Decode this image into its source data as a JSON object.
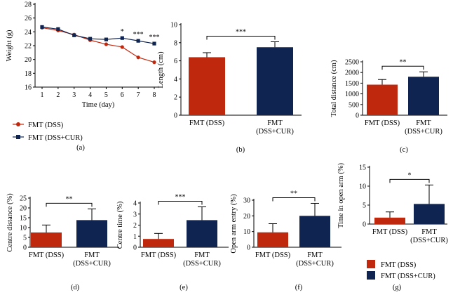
{
  "colors": {
    "dss": "#c0280e",
    "cur": "#0f2451"
  },
  "legend": {
    "line_dss": "FMT (DSS)",
    "line_cur": "FMT (DSS+CUR)",
    "bar_dss": "FMT (DSS)",
    "bar_cur": "FMT (DSS+CUR)"
  },
  "chart_data": [
    {
      "id": "a",
      "type": "line",
      "panel_label": "(a)",
      "xlabel": "Time (day)",
      "ylabel": "Weight (g)",
      "x": [
        1,
        2,
        3,
        4,
        5,
        6,
        7,
        8
      ],
      "xticks": [
        "1",
        "2",
        "3",
        "4",
        "5",
        "6",
        "7",
        "8"
      ],
      "ylim": [
        16,
        28
      ],
      "yticks": [
        "16",
        "18",
        "20",
        "22",
        "24",
        "26",
        "28"
      ],
      "series": [
        {
          "name": "FMT (DSS)",
          "values": [
            24.6,
            24.2,
            23.6,
            22.8,
            22.2,
            21.8,
            20.3,
            19.6
          ]
        },
        {
          "name": "FMT (DSS+CUR)",
          "values": [
            24.7,
            24.4,
            23.5,
            23.0,
            22.9,
            23.1,
            22.7,
            22.3
          ]
        }
      ],
      "significance": [
        {
          "x": 6,
          "label": "*"
        },
        {
          "x": 7,
          "label": "***"
        },
        {
          "x": 8,
          "label": "***"
        }
      ]
    },
    {
      "id": "b",
      "type": "bar",
      "panel_label": "(b)",
      "ylabel": "Length (cm)",
      "ylim": [
        0,
        10
      ],
      "yticks": [
        "0",
        "2",
        "4",
        "6",
        "8",
        "10"
      ],
      "categories": [
        "FMT (DSS)",
        "FMT (DSS+CUR)"
      ],
      "category_lines": [
        [
          "FMT (DSS)"
        ],
        [
          "FMT",
          "(DSS+CUR)"
        ]
      ],
      "values": [
        6.4,
        7.5
      ],
      "errors": [
        0.5,
        0.6
      ],
      "significance": "***"
    },
    {
      "id": "c",
      "type": "bar",
      "panel_label": "(c)",
      "ylabel": "Total distance (cm)",
      "ylim": [
        0,
        2500
      ],
      "yticks": [
        "0",
        "500",
        "1000",
        "1500",
        "2000",
        "2500"
      ],
      "categories": [
        "FMT (DSS)",
        "FMT (DSS+CUR)"
      ],
      "category_lines": [
        [
          "FMT (DSS)"
        ],
        [
          "FMT",
          "(DSS+CUR)"
        ]
      ],
      "values": [
        1430,
        1800
      ],
      "errors": [
        240,
        230
      ],
      "significance": "**"
    },
    {
      "id": "d",
      "type": "bar",
      "panel_label": "(d)",
      "ylabel": "Centre distance (%)",
      "ylim": [
        0,
        25
      ],
      "yticks": [
        "0",
        "5",
        "10",
        "15",
        "20",
        "25"
      ],
      "categories": [
        "FMT (DSS)",
        "FMT (DSS+CUR)"
      ],
      "category_lines": [
        [
          "FMT (DSS)"
        ],
        [
          "FMT",
          "(DSS+CUR)"
        ]
      ],
      "values": [
        7.5,
        13.8
      ],
      "errors": [
        3.8,
        5.7
      ],
      "significance": "**"
    },
    {
      "id": "e",
      "type": "bar",
      "panel_label": "(e)",
      "ylabel": "Centre time (%)",
      "ylim": [
        0,
        4
      ],
      "yticks": [
        "0",
        "1",
        "2",
        "3",
        "4"
      ],
      "categories": [
        "FMT (DSS)",
        "FMT (DSS+CUR)"
      ],
      "category_lines": [
        [
          "FMT (DSS)"
        ],
        [
          "FMT",
          "(DSS+CUR)"
        ]
      ],
      "values": [
        0.75,
        2.45
      ],
      "errors": [
        0.5,
        1.2
      ],
      "significance": "***"
    },
    {
      "id": "f",
      "type": "bar",
      "panel_label": "(f)",
      "ylabel": "Open arm entry (%)",
      "ylim": [
        0,
        30
      ],
      "yticks": [
        "0",
        "10",
        "20",
        "30"
      ],
      "categories": [
        "FMT (DSS)",
        "FMT (DSS+CUR)"
      ],
      "category_lines": [
        [
          "FMT (DSS)"
        ],
        [
          "FMT",
          "(DSS+CUR)"
        ]
      ],
      "values": [
        9.5,
        20.0
      ],
      "errors": [
        5.5,
        8.0
      ],
      "significance": "**"
    },
    {
      "id": "g",
      "type": "bar",
      "panel_label": "(g)",
      "ylabel": "Time in open arm (%)",
      "ylim": [
        0,
        15
      ],
      "yticks": [
        "0",
        "5",
        "10",
        "15"
      ],
      "categories": [
        "FMT (DSS)",
        "FMT (DSS+CUR)"
      ],
      "category_lines": [
        [
          "FMT (DSS)"
        ],
        [
          "FMT",
          "(DSS+CUR)"
        ]
      ],
      "values": [
        1.7,
        5.3
      ],
      "errors": [
        1.5,
        5.0
      ],
      "significance": "*"
    }
  ]
}
